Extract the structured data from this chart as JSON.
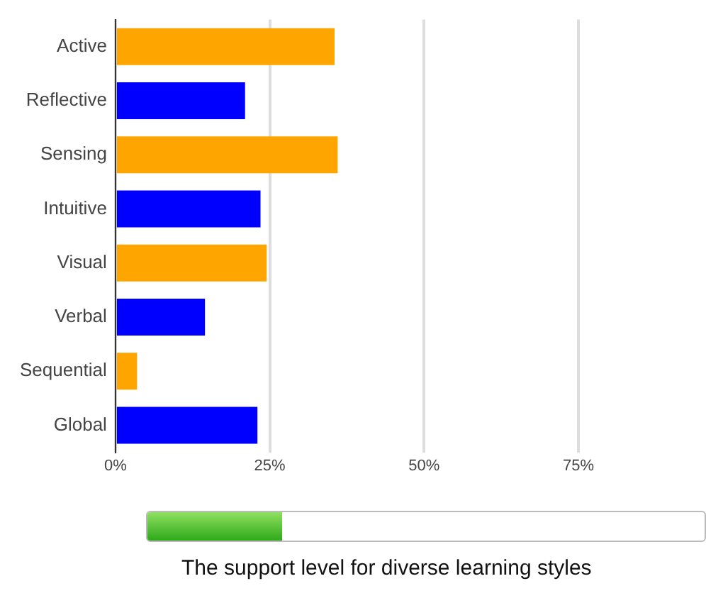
{
  "chart_data": {
    "type": "bar",
    "orientation": "horizontal",
    "categories": [
      "Active",
      "Reflective",
      "Sensing",
      "Intuitive",
      "Visual",
      "Verbal",
      "Sequential",
      "Global"
    ],
    "values": [
      35.5,
      21,
      36,
      23.5,
      24.5,
      14.5,
      3.5,
      23
    ],
    "colors": [
      "#ffa500",
      "#0000ff",
      "#ffa500",
      "#0000ff",
      "#ffa500",
      "#0000ff",
      "#ffa500",
      "#0000ff"
    ],
    "xlim": [
      0,
      75
    ],
    "xticks": [
      {
        "value": 0,
        "label": "0%"
      },
      {
        "value": 25,
        "label": "25%"
      },
      {
        "value": 50,
        "label": "50%"
      },
      {
        "value": 75,
        "label": "75%"
      }
    ],
    "grid": "x",
    "legend": false,
    "annotations": [
      "The support level for diverse learning styles"
    ]
  }
}
